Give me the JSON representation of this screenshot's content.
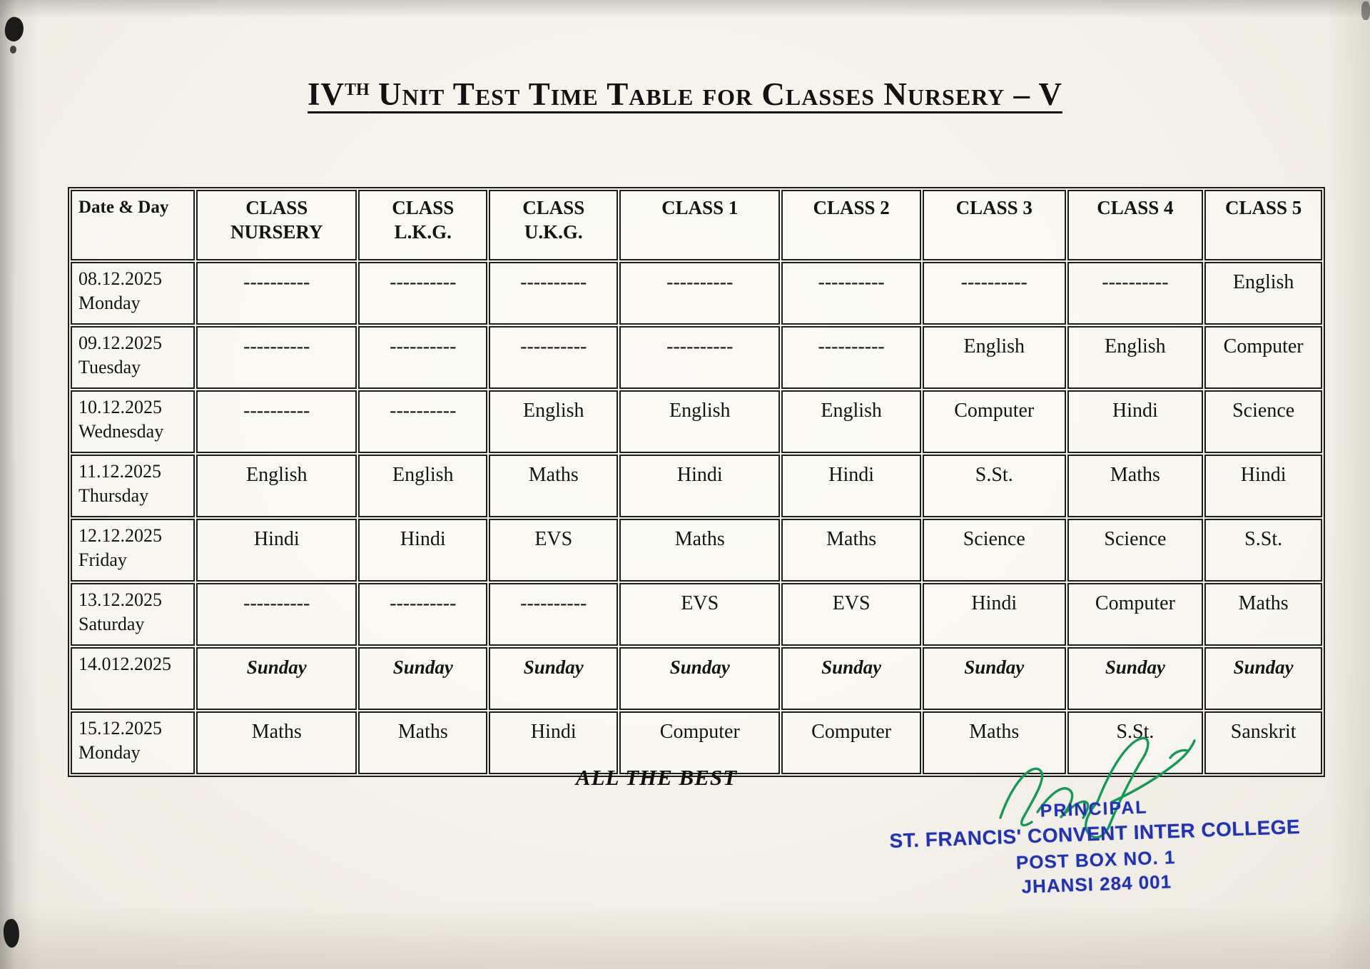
{
  "page": {
    "title": {
      "prefix": "IV",
      "superscript": "TH",
      "rest": " Unit Test Time Table for Classes Nursery – V"
    },
    "footer_note": "ALL THE BEST"
  },
  "table": {
    "columns": [
      "Date & Day",
      "CLASS NURSERY",
      "CLASS L.K.G.",
      "CLASS U.K.G.",
      "CLASS 1",
      "CLASS 2",
      "CLASS 3",
      "CLASS 4",
      "CLASS 5"
    ],
    "rows": [
      {
        "date": "08.12.2025",
        "day": "Monday",
        "sunday": false,
        "cells": [
          "----------",
          "----------",
          "----------",
          "----------",
          "----------",
          "----------",
          "----------",
          "English"
        ]
      },
      {
        "date": "09.12.2025",
        "day": "Tuesday",
        "sunday": false,
        "cells": [
          "----------",
          "----------",
          "----------",
          "----------",
          "----------",
          "English",
          "English",
          "Computer"
        ]
      },
      {
        "date": "10.12.2025",
        "day": "Wednesday",
        "sunday": false,
        "cells": [
          "----------",
          "----------",
          "English",
          "English",
          "English",
          "Computer",
          "Hindi",
          "Science"
        ]
      },
      {
        "date": "11.12.2025",
        "day": "Thursday",
        "sunday": false,
        "cells": [
          "English",
          "English",
          "Maths",
          "Hindi",
          "Hindi",
          "S.St.",
          "Maths",
          "Hindi"
        ]
      },
      {
        "date": "12.12.2025",
        "day": "Friday",
        "sunday": false,
        "cells": [
          "Hindi",
          "Hindi",
          "EVS",
          "Maths",
          "Maths",
          "Science",
          "Science",
          "S.St."
        ]
      },
      {
        "date": "13.12.2025",
        "day": "Saturday",
        "sunday": false,
        "cells": [
          "----------",
          "----------",
          "----------",
          "EVS",
          "EVS",
          "Hindi",
          "Computer",
          "Maths"
        ]
      },
      {
        "date": "14.012.2025",
        "day": "",
        "sunday": true,
        "cells": [
          "Sunday",
          "Sunday",
          "Sunday",
          "Sunday",
          "Sunday",
          "Sunday",
          "Sunday",
          "Sunday"
        ]
      },
      {
        "date": "15.12.2025",
        "day": "Monday",
        "sunday": false,
        "cells": [
          "Maths",
          "Maths",
          "Hindi",
          "Computer",
          "Computer",
          "Maths",
          "S.St.",
          "Sanskrit"
        ]
      }
    ]
  },
  "stamp": {
    "lines": [
      "PRINCIPAL",
      "ST. FRANCIS' CONVENT INTER COLLEGE",
      "POST BOX NO. 1",
      "JHANSI 284 001"
    ],
    "ink_color": "#2133b4",
    "signature_color": "#149a57"
  }
}
